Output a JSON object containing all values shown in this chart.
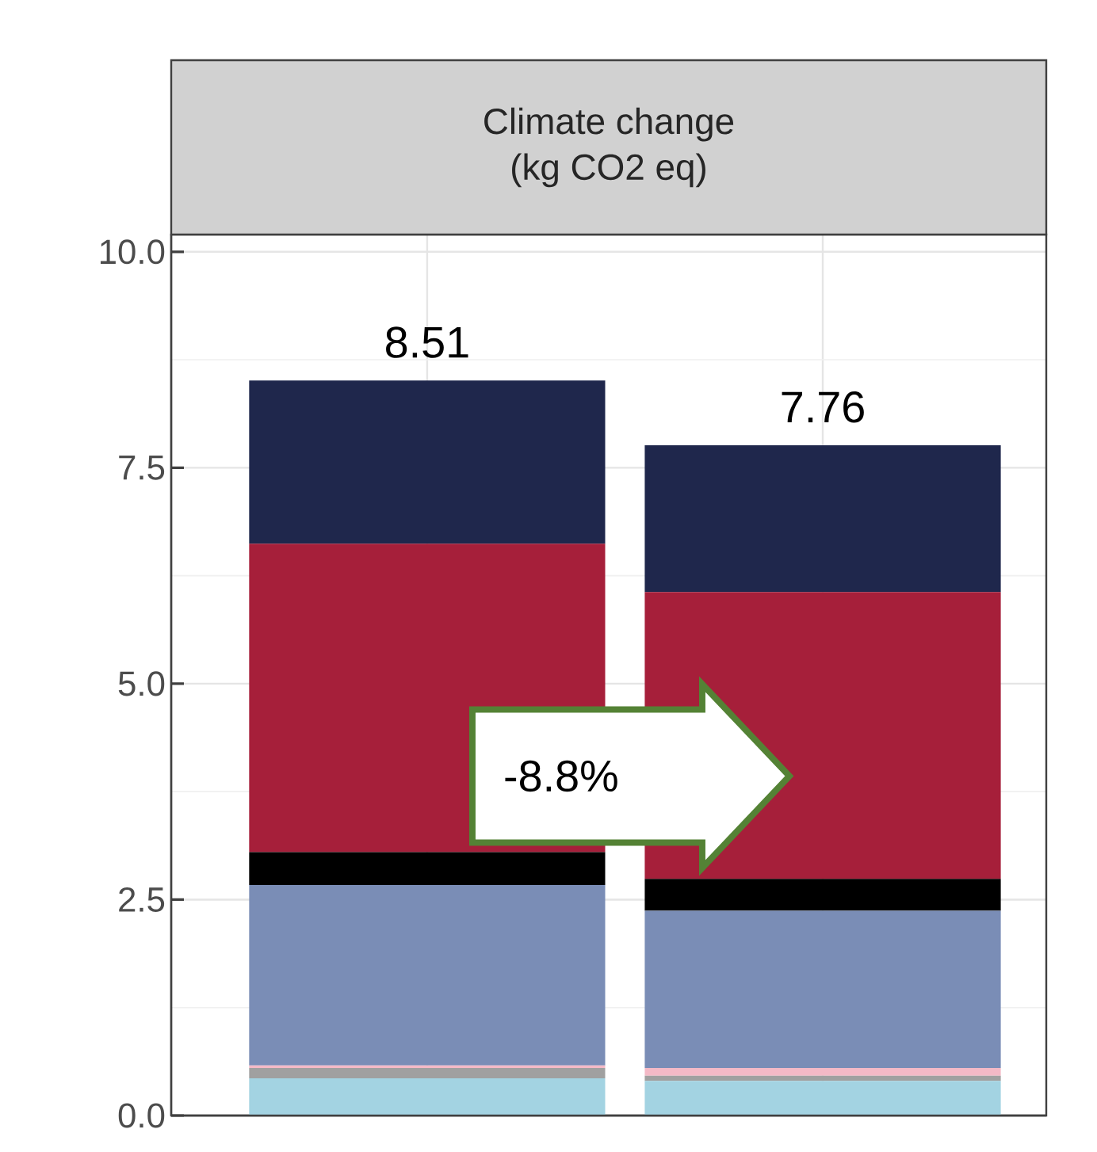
{
  "chart_data": {
    "type": "bar",
    "stacked": true,
    "title": "Climate change",
    "subtitle": "(kg CO2 eq)",
    "categories": [
      null,
      null
    ],
    "series": [
      {
        "color": "#a3d3e2",
        "values": [
          0.43,
          0.4
        ]
      },
      {
        "color": "#a0a0a0",
        "values": [
          0.12,
          0.06
        ]
      },
      {
        "color": "#f4b9c6",
        "values": [
          0.03,
          0.09
        ]
      },
      {
        "color": "#7a8db6",
        "values": [
          2.09,
          1.82
        ]
      },
      {
        "color": "#000000",
        "values": [
          0.38,
          0.37
        ]
      },
      {
        "color": "#a61f3a",
        "values": [
          3.57,
          3.32
        ]
      },
      {
        "color": "#1f274c",
        "values": [
          1.89,
          1.7
        ]
      }
    ],
    "totals": [
      "8.51",
      "7.76"
    ],
    "annotations": [
      "-8.8%"
    ],
    "ylim": [
      0,
      10.2
    ],
    "yticks": [
      {
        "value": 0,
        "label": "0.0"
      },
      {
        "value": 2.5,
        "label": "2.5"
      },
      {
        "value": 5,
        "label": "5.0"
      },
      {
        "value": 7.5,
        "label": "7.5"
      },
      {
        "value": 10,
        "label": "10.0"
      }
    ],
    "grid": true
  }
}
